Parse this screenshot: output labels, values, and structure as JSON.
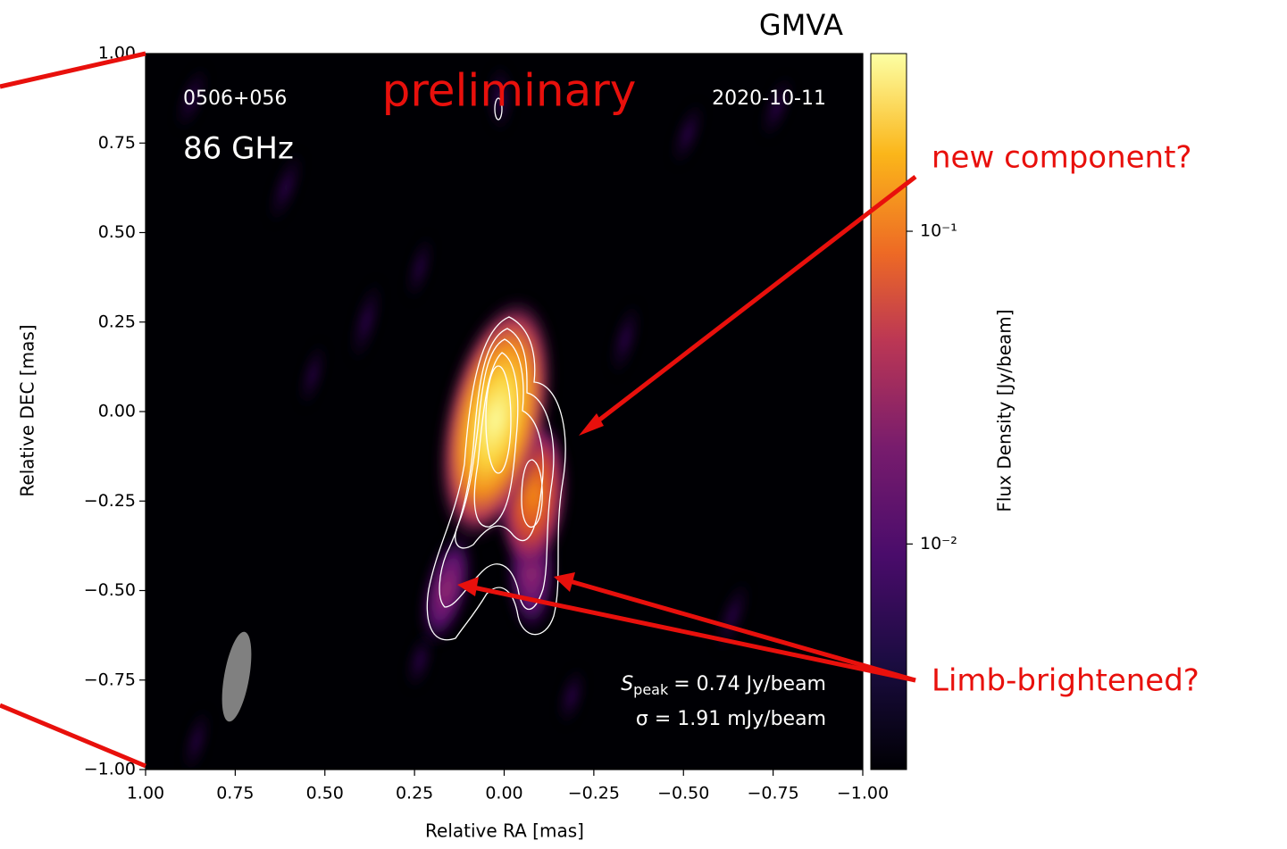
{
  "chart_data": {
    "type": "image",
    "title": "GMVA",
    "xlabel": "Relative RA [mas]",
    "ylabel": "Relative DEC [mas]",
    "xlim": [
      1,
      -1
    ],
    "ylim": [
      -1,
      1
    ],
    "xticks": [
      {
        "value": 1,
        "label": "1.00"
      },
      {
        "value": 0.75,
        "label": "0.75"
      },
      {
        "value": 0.5,
        "label": "0.50"
      },
      {
        "value": 0.25,
        "label": "0.25"
      },
      {
        "value": 0,
        "label": "0.00"
      },
      {
        "value": -0.25,
        "label": "−0.25"
      },
      {
        "value": -0.5,
        "label": "−0.50"
      },
      {
        "value": -0.75,
        "label": "−0.75"
      },
      {
        "value": -1,
        "label": "−1.00"
      }
    ],
    "yticks": [
      {
        "value": 1,
        "label": "1.00"
      },
      {
        "value": 0.75,
        "label": "0.75"
      },
      {
        "value": 0.5,
        "label": "0.50"
      },
      {
        "value": 0.25,
        "label": "0.25"
      },
      {
        "value": 0,
        "label": "0.00"
      },
      {
        "value": -0.25,
        "label": "−0.25"
      },
      {
        "value": -0.5,
        "label": "−0.50"
      },
      {
        "value": -0.75,
        "label": "−0.75"
      },
      {
        "value": -1,
        "label": "−1.00"
      }
    ],
    "colorbar": {
      "label": "Flux Density [Jy/beam]",
      "scale": "log",
      "lim": [
        0.0019,
        0.37
      ],
      "ticks": [
        {
          "value": 0.01,
          "label": "10⁻²"
        },
        {
          "value": 0.1,
          "label": "10⁻¹"
        }
      ]
    },
    "annotations": {
      "source": "0506+056",
      "frequency": "86 GHz",
      "status": "preliminary",
      "date": "2020-10-11",
      "speak": {
        "symbol": "S",
        "subscript": "peak",
        "text": "= 0.74 Jy/beam"
      },
      "sigma": "σ = 1.91 mJy/beam",
      "new_component": "new component?",
      "limb": "Limb-brightened?"
    }
  }
}
